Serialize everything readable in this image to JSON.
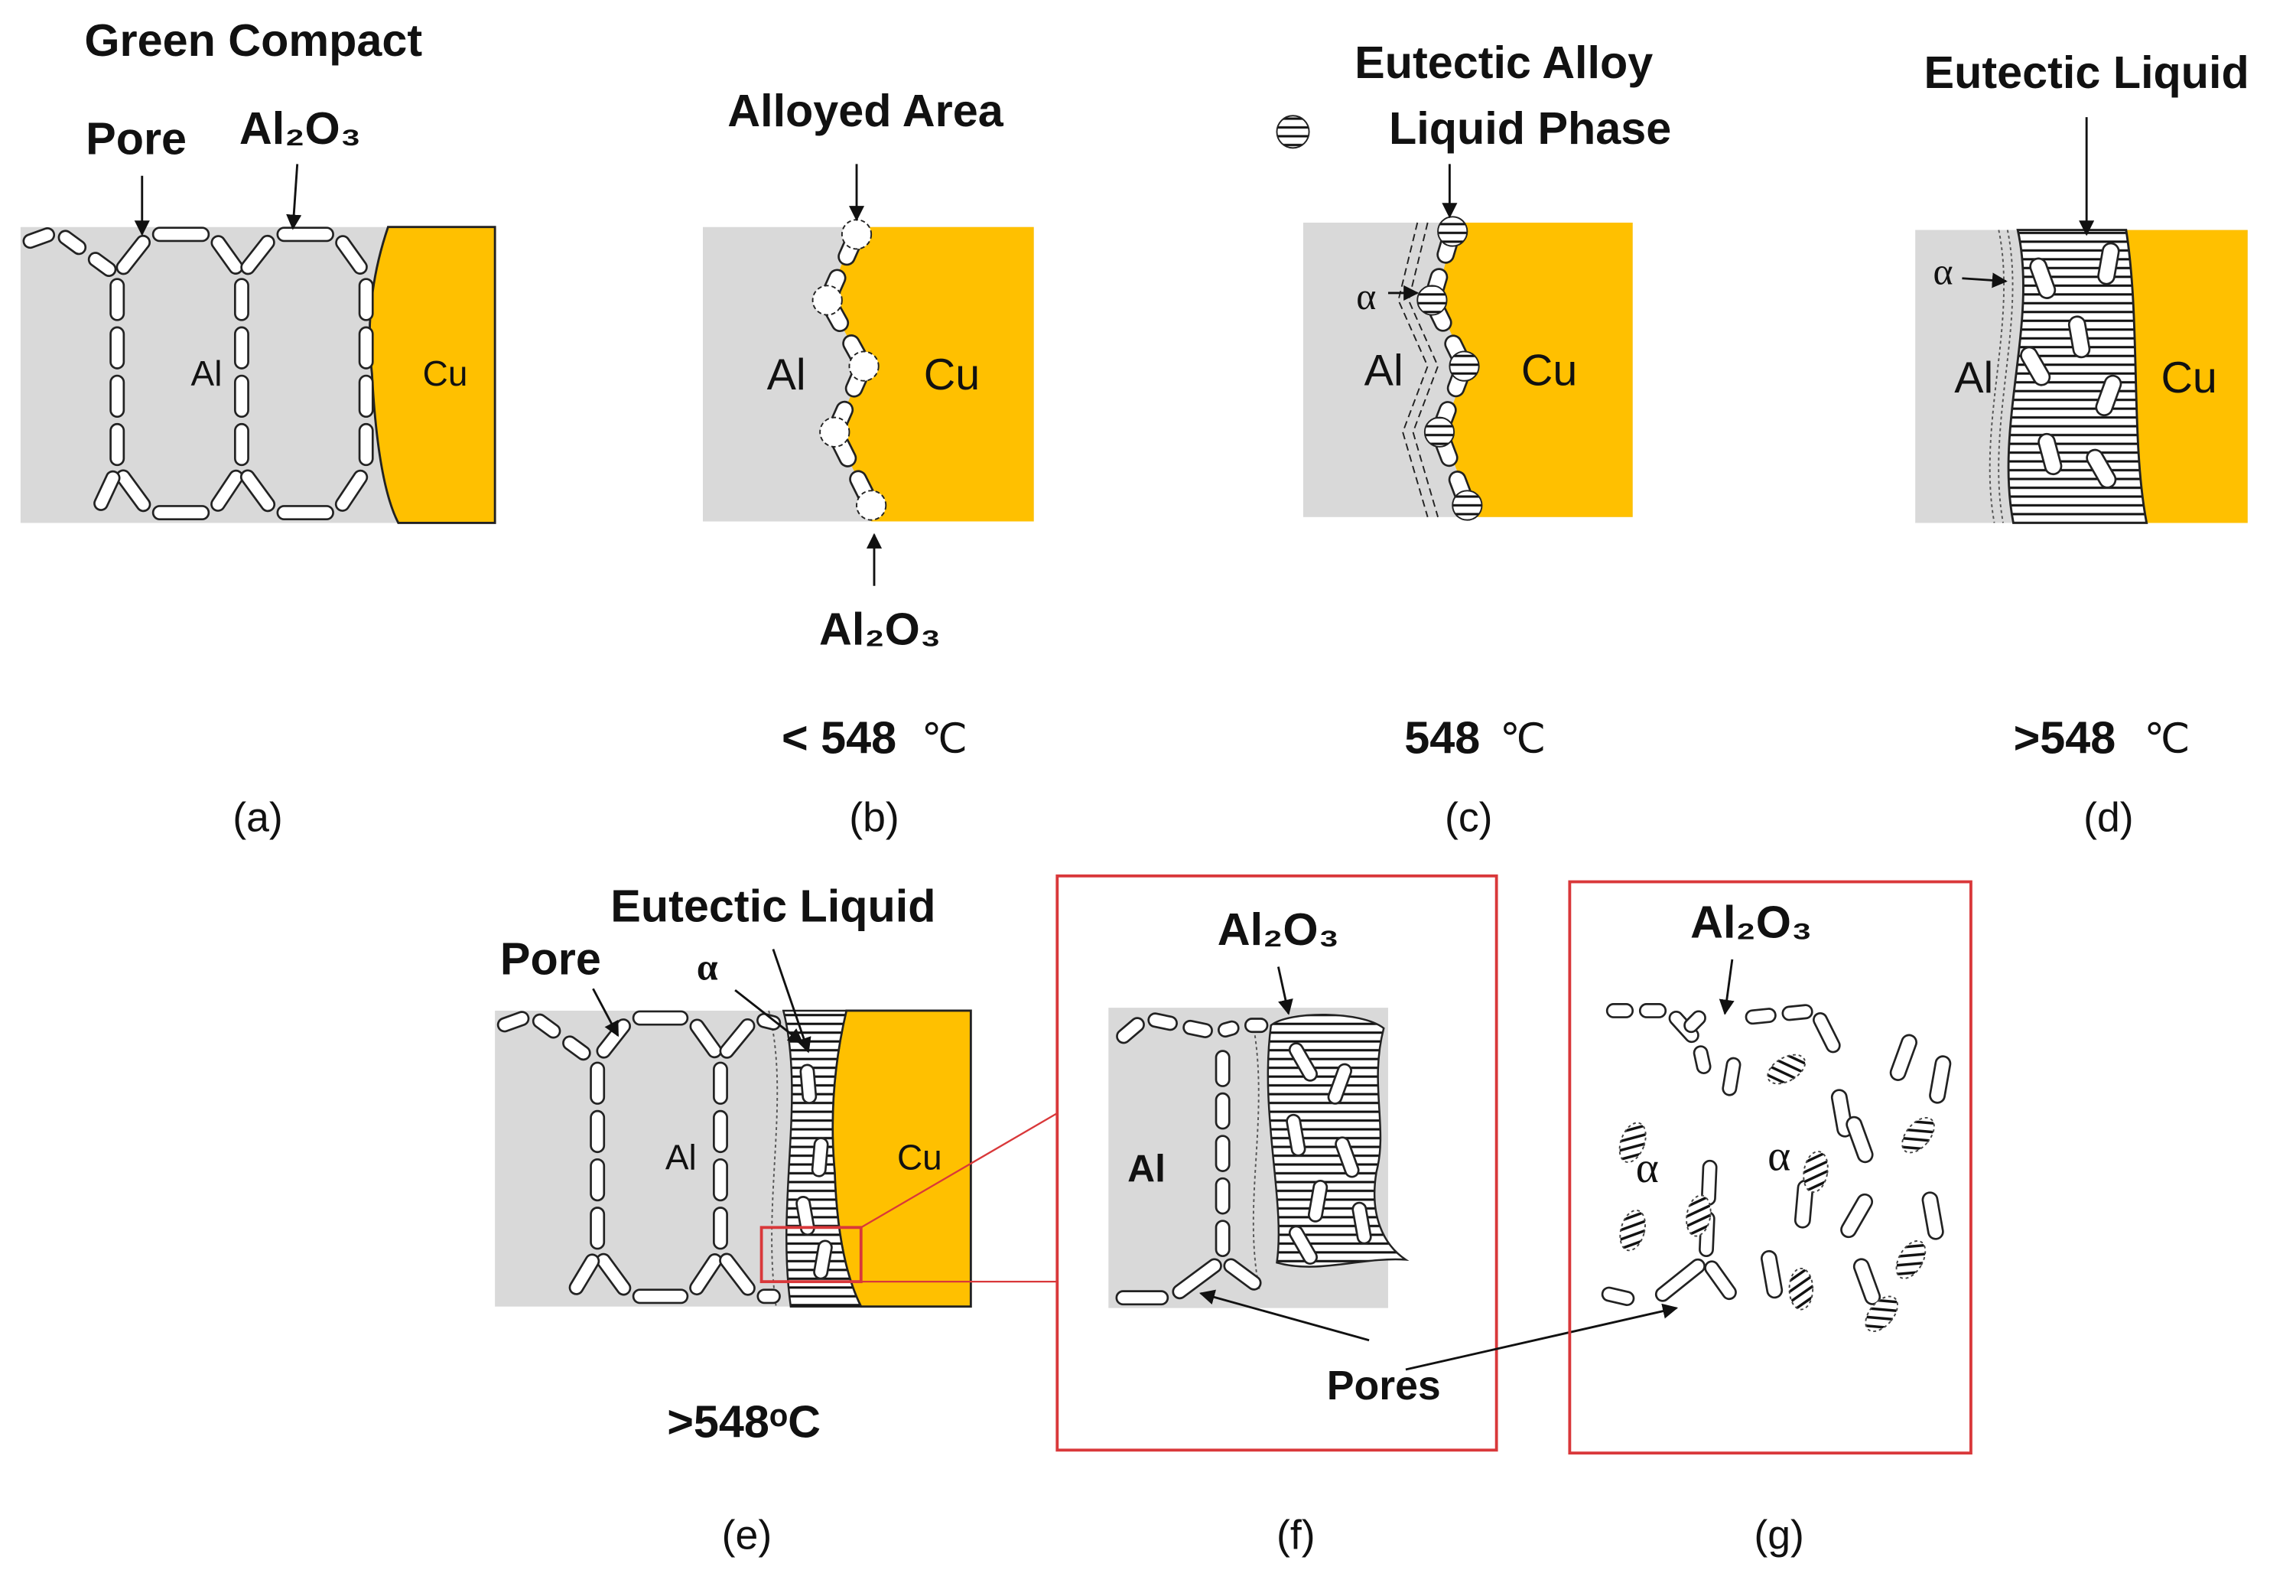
{
  "panels": {
    "a": {
      "caption": "(a)",
      "title": "Green Compact",
      "pore": "Pore",
      "oxide": "Al₂O₃",
      "al": "Al",
      "cu": "Cu"
    },
    "b": {
      "caption": "(b)",
      "alloyed": "Alloyed Area",
      "oxide": "Al₂O₃",
      "al": "Al",
      "cu": "Cu",
      "temperature": {
        "value": "< 548",
        "unit": "℃"
      }
    },
    "c": {
      "caption": "(c)",
      "title_lines": [
        "Eutectic Alloy",
        "Liquid Phase"
      ],
      "alpha": "α",
      "al": "Al",
      "cu": "Cu",
      "temperature": {
        "value": "548",
        "unit": "℃"
      }
    },
    "d": {
      "caption": "(d)",
      "title": "Eutectic Liquid",
      "alpha": "α",
      "al": "Al",
      "cu": "Cu",
      "temperature": {
        "value": ">548",
        "unit": "℃"
      }
    },
    "e": {
      "caption": "(e)",
      "title": "Eutectic Liquid",
      "pore": "Pore",
      "alpha": "α",
      "al": "Al",
      "cu": "Cu",
      "temperature": ">548ᵒC"
    },
    "f": {
      "caption": "(f)",
      "oxide": "Al₂O₃",
      "al": "Al",
      "pores": "Pores"
    },
    "g": {
      "caption": "(g)",
      "oxide": "Al₂O₃",
      "alpha": [
        "α",
        "α"
      ]
    }
  }
}
